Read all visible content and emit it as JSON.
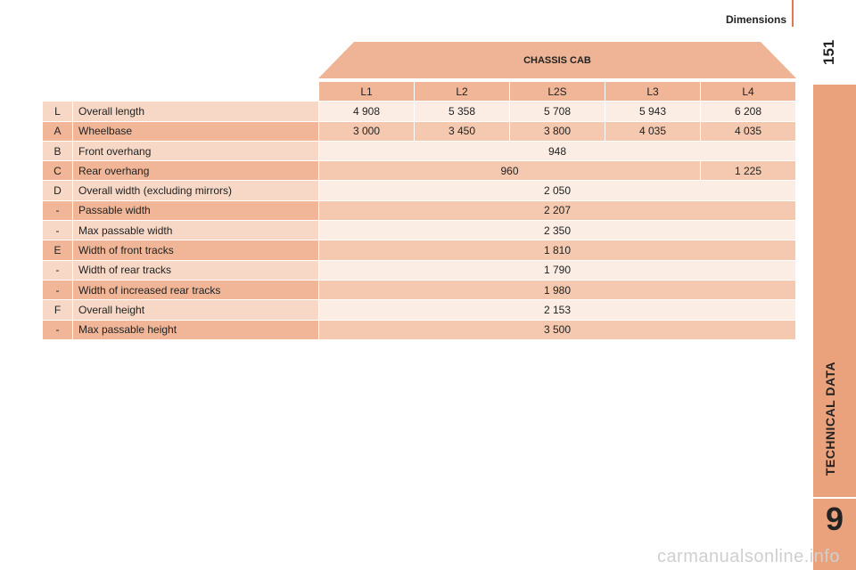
{
  "header": {
    "title": "Dimensions",
    "page": "151"
  },
  "sidebar": {
    "section": "TECHNICAL DATA",
    "chapter": "9"
  },
  "watermark": "carmanualsonline.info",
  "table": {
    "title": "CHASSIS CAB",
    "columns": [
      "L1",
      "L2",
      "L2S",
      "L3",
      "L4"
    ],
    "rows": [
      {
        "code": "L",
        "label": "Overall length",
        "cells": [
          "4 908",
          "5 358",
          "5 708",
          "5 943",
          "6 208"
        ]
      },
      {
        "code": "A",
        "label": "Wheelbase",
        "cells": [
          "3 000",
          "3 450",
          "3 800",
          "4 035",
          "4 035"
        ]
      },
      {
        "code": "B",
        "label": "Front overhang",
        "cells": [
          "948"
        ]
      },
      {
        "code": "C",
        "label": "Rear overhang",
        "cells": [
          "960",
          "1 225"
        ]
      },
      {
        "code": "D",
        "label": "Overall width (excluding mirrors)",
        "cells": [
          "2 050"
        ]
      },
      {
        "code": "-",
        "label": "Passable width",
        "cells": [
          "2 207"
        ]
      },
      {
        "code": "-",
        "label": "Max passable width",
        "cells": [
          "2 350"
        ]
      },
      {
        "code": "E",
        "label": "Width of front tracks",
        "cells": [
          "1 810"
        ]
      },
      {
        "code": "-",
        "label": "Width of rear tracks",
        "cells": [
          "1 790"
        ]
      },
      {
        "code": "-",
        "label": "Width of increased rear tracks",
        "cells": [
          "1 980"
        ]
      },
      {
        "code": "F",
        "label": "Overall height",
        "cells": [
          "2 153"
        ]
      },
      {
        "code": "-",
        "label": "Max passable height",
        "cells": [
          "3 500"
        ]
      }
    ]
  }
}
